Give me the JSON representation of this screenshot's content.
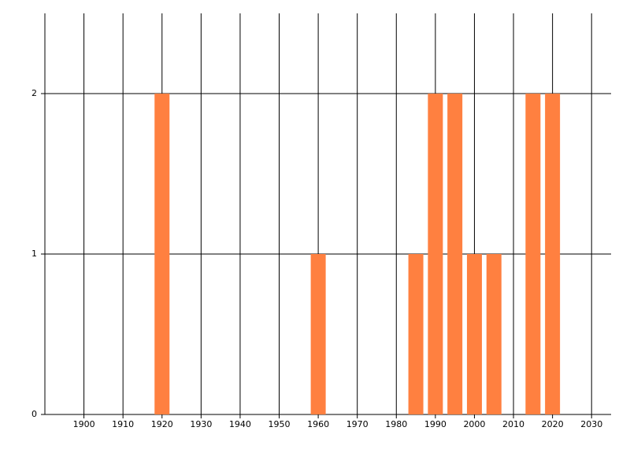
{
  "chart_data": {
    "type": "bar",
    "x": [
      1920,
      1960,
      1985,
      1990,
      1995,
      2000,
      2005,
      2015,
      2020
    ],
    "values": [
      2,
      1,
      1,
      2,
      2,
      1,
      1,
      2,
      2
    ],
    "color": "#ff8040",
    "xlim": [
      1890,
      2035
    ],
    "xticks": [
      1900,
      1910,
      1920,
      1930,
      1940,
      1950,
      1960,
      1970,
      1980,
      1990,
      2000,
      2010,
      2020,
      2030
    ],
    "ylim": [
      0,
      2.5
    ],
    "yticks": [
      0,
      1,
      2
    ],
    "grid": true
  }
}
